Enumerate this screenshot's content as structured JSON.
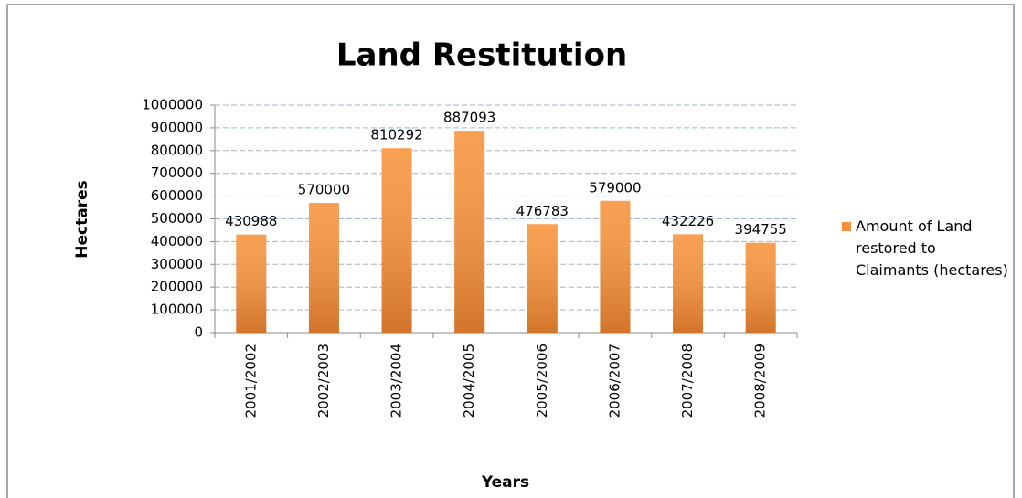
{
  "chart_data": {
    "type": "bar",
    "title": "Land Restitution",
    "x_label": "Years",
    "y_label": "Hectares",
    "categories": [
      "2001/2002",
      "2002/2003",
      "2003/2004",
      "2004/2005",
      "2005/2006",
      "2006/2007",
      "2007/2008",
      "2008/2009"
    ],
    "series": [
      {
        "name": "Amount of Land restored to Claimants (hectares)",
        "color": "#f7923a",
        "values": [
          430988,
          570000,
          810292,
          887093,
          476783,
          579000,
          432226,
          394755
        ]
      }
    ],
    "ylim": [
      0,
      1000000
    ],
    "yticks": [
      0,
      100000,
      200000,
      300000,
      400000,
      500000,
      600000,
      700000,
      800000,
      900000,
      1000000
    ],
    "grid": true,
    "legend": "right"
  }
}
